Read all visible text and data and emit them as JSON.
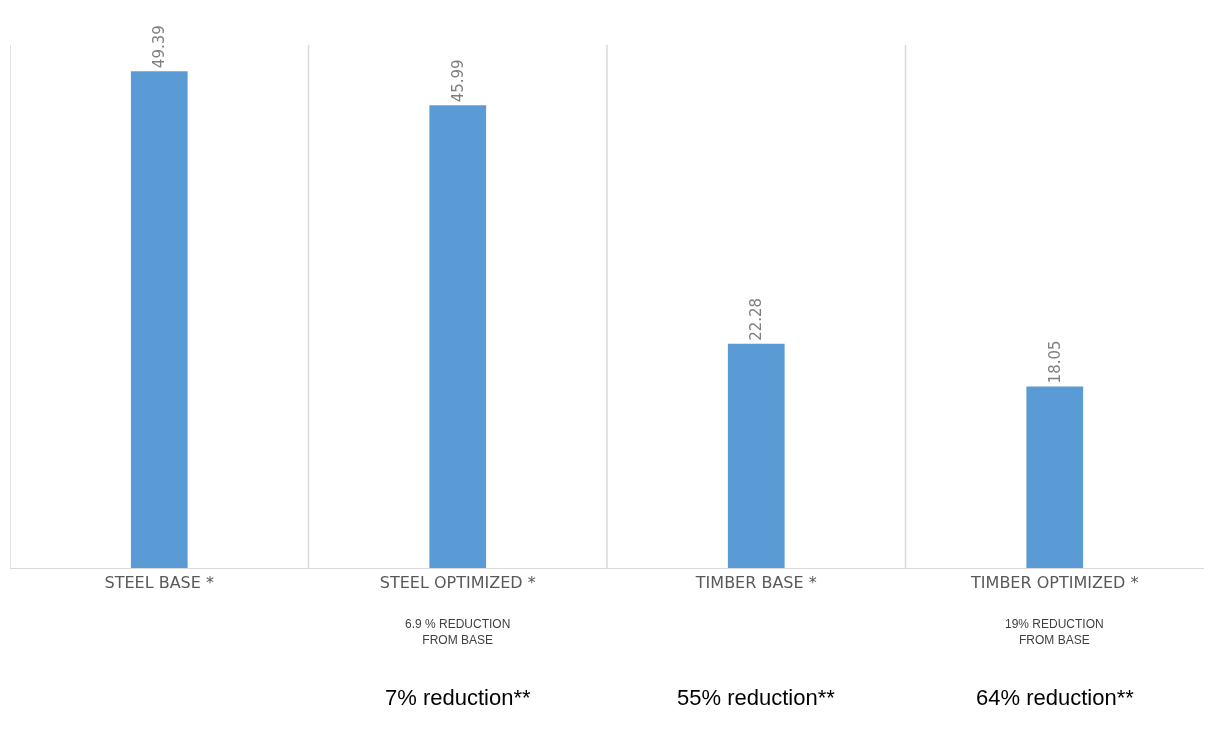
{
  "chart_data": {
    "type": "bar",
    "categories": [
      "STEEL BASE *",
      "STEEL OPTIMIZED *",
      "TIMBER BASE *",
      "TIMBER OPTIMIZED *"
    ],
    "values": [
      49.39,
      45.99,
      22.28,
      18.05
    ],
    "color": "#5b9bd5",
    "data_labels": true,
    "grid": "x",
    "annotations": [
      "6.9 % REDUCTION\nFROM BASE",
      "19% REDUCTION\nFROM BASE",
      "7% reduction**",
      "55% reduction**",
      "64% reduction**"
    ]
  }
}
